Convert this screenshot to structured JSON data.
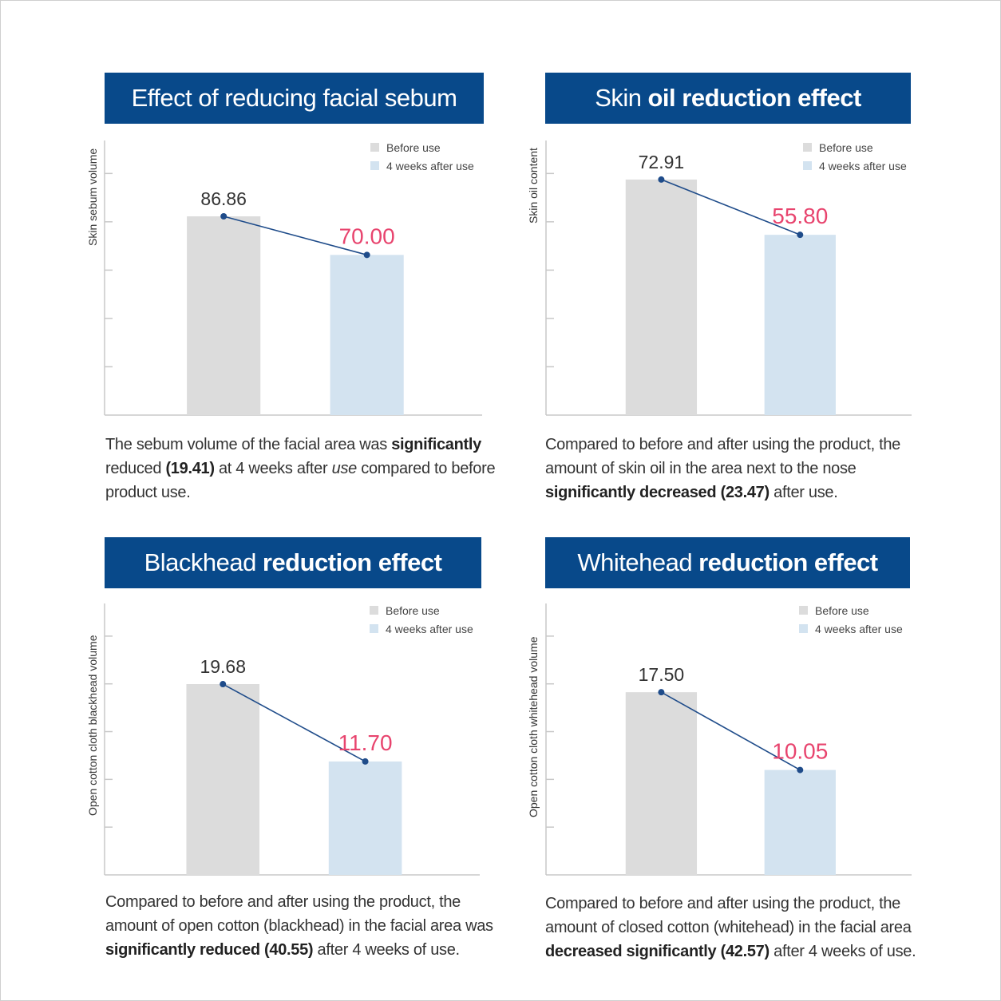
{
  "colors": {
    "title_bg": "#08498a",
    "before": "#dcdcdc",
    "after": "#d3e3f0",
    "line": "#1f4c8a",
    "after_label": "#e8446e",
    "before_label": "#333333"
  },
  "legend": {
    "before": "Before use",
    "after": "4 weeks after use"
  },
  "charts": [
    {
      "title_light": "Effect of reducing facial sebum",
      "title_bold": "",
      "ylabel": "Skin sebum volume",
      "caption": {
        "p1": "The sebum volume of the facial area was ",
        "b1": "significantly",
        "p2": " reduced ",
        "b2": "(19.41)",
        "p3": " at 4 weeks after ",
        "i1": "use",
        "p4": " compared to before product use."
      }
    },
    {
      "title_light": "Skin",
      "title_bold": "oil  reduction effect",
      "ylabel": "Skin oil content",
      "caption": {
        "p1": "Compared to before and after using the product, the amount of skin oil in the area next to the nose ",
        "b1": "significantly decreased",
        "p2": " ",
        "b2": "(23.47)",
        "p3": " after use.",
        "i1": "",
        "p4": ""
      }
    },
    {
      "title_light": "Blackhead",
      "title_bold": "reduction effect",
      "ylabel": "Open cotton cloth blackhead volume",
      "caption": {
        "p1": "Compared to before and after using the product, the amount of open cotton (blackhead) in the facial area was ",
        "b1": "significantly reduced",
        "p2": " ",
        "b2": "(40.55)",
        "p3": " after 4 weeks of use.",
        "i1": "",
        "p4": ""
      }
    },
    {
      "title_light": "Whitehead",
      "title_bold": "reduction effect",
      "ylabel": "Open cotton cloth whitehead volume",
      "caption": {
        "p1": "Compared to before and after using the product, the amount of closed cotton (whitehead) in the facial area ",
        "b1": "decreased significantly",
        "p2": " ",
        "b2": "(42.57)",
        "p3": " after 4 weeks of use.",
        "i1": "",
        "p4": ""
      }
    }
  ],
  "chart_data": [
    {
      "type": "bar",
      "title": "Effect of reducing facial sebum",
      "ylabel": "Skin sebum volume",
      "categories": [
        "Before use",
        "4 weeks after use"
      ],
      "values": [
        86.86,
        70.0
      ],
      "value_labels": [
        "86.86",
        "70.00"
      ],
      "ylim": [
        0,
        120
      ],
      "legend": "top-right"
    },
    {
      "type": "bar",
      "title": "Skin oil  reduction effect",
      "ylabel": "Skin oil content",
      "categories": [
        "Before use",
        "4 weeks after use"
      ],
      "values": [
        72.91,
        55.8
      ],
      "value_labels": [
        "72.91",
        "55.80"
      ],
      "ylim": [
        0,
        85
      ],
      "legend": "top-right"
    },
    {
      "type": "bar",
      "title": "Blackhead reduction effect",
      "ylabel": "Open cotton cloth blackhead volume",
      "categories": [
        "Before use",
        "4 weeks after use"
      ],
      "values": [
        19.68,
        11.7
      ],
      "value_labels": [
        "19.68",
        "11.70"
      ],
      "ylim": [
        0,
        28
      ],
      "legend": "top-right"
    },
    {
      "type": "bar",
      "title": "Whitehead reduction effect",
      "ylabel": "Open cotton cloth whitehead volume",
      "categories": [
        "Before use",
        "4 weeks after use"
      ],
      "values": [
        17.5,
        10.05
      ],
      "value_labels": [
        "17.50",
        "10.05"
      ],
      "ylim": [
        0,
        26
      ],
      "legend": "top-right"
    }
  ]
}
